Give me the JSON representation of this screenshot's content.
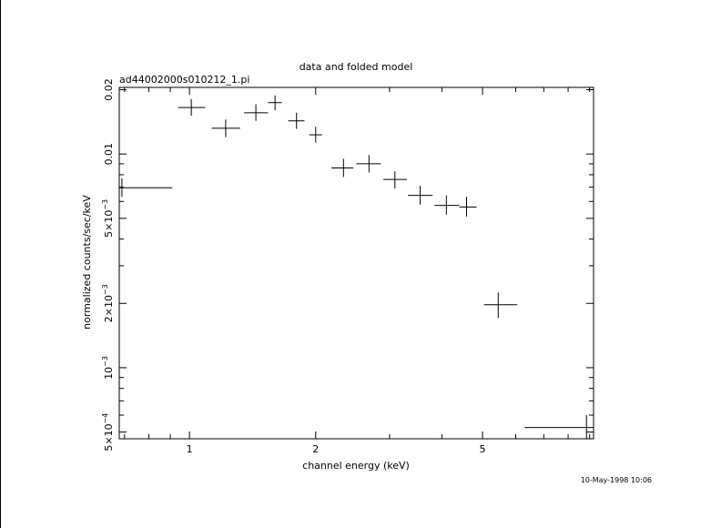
{
  "chart_data": {
    "type": "scatter",
    "title": "data and folded model",
    "subtitle": "ad44002000s010212_1.pi",
    "xlabel": "channel energy (keV)",
    "ylabel": "normalized counts/sec/keV",
    "timestamp": "10-May-1998 10:06",
    "x_scale": "log",
    "y_scale": "log",
    "xlim": [
      0.68,
      9.2
    ],
    "ylim": [
      0.000465,
      0.0205
    ],
    "grid": false,
    "x_ticks": [
      {
        "value": 1,
        "label": "1"
      },
      {
        "value": 2,
        "label": "2"
      },
      {
        "value": 5,
        "label": "5"
      }
    ],
    "y_ticks": [
      {
        "value": 0.0005,
        "base": "5×10",
        "exp": "−4"
      },
      {
        "value": 0.001,
        "base": "10",
        "exp": "−3"
      },
      {
        "value": 0.002,
        "base": "2×10",
        "exp": "−3"
      },
      {
        "value": 0.005,
        "base": "5×10",
        "exp": "−3"
      },
      {
        "value": 0.01,
        "label": "0.01"
      },
      {
        "value": 0.02,
        "label": "0.02"
      }
    ],
    "points": [
      {
        "x": 0.69,
        "x_lo": 0.68,
        "x_hi": 0.91,
        "y": 0.00695,
        "y_lo": 0.0063,
        "y_hi": 0.0077
      },
      {
        "x": 1.01,
        "x_lo": 0.94,
        "x_hi": 1.09,
        "y": 0.0165,
        "y_lo": 0.0151,
        "y_hi": 0.0181
      },
      {
        "x": 1.22,
        "x_lo": 1.13,
        "x_hi": 1.32,
        "y": 0.0132,
        "y_lo": 0.012,
        "y_hi": 0.0145
      },
      {
        "x": 1.44,
        "x_lo": 1.35,
        "x_hi": 1.54,
        "y": 0.0156,
        "y_lo": 0.0143,
        "y_hi": 0.0171
      },
      {
        "x": 1.6,
        "x_lo": 1.54,
        "x_hi": 1.66,
        "y": 0.0174,
        "y_lo": 0.016,
        "y_hi": 0.0188
      },
      {
        "x": 1.8,
        "x_lo": 1.72,
        "x_hi": 1.88,
        "y": 0.0143,
        "y_lo": 0.0131,
        "y_hi": 0.0156
      },
      {
        "x": 2.0,
        "x_lo": 1.93,
        "x_hi": 2.07,
        "y": 0.0123,
        "y_lo": 0.0113,
        "y_hi": 0.0134
      },
      {
        "x": 2.33,
        "x_lo": 2.18,
        "x_hi": 2.46,
        "y": 0.0086,
        "y_lo": 0.0078,
        "y_hi": 0.0095
      },
      {
        "x": 2.68,
        "x_lo": 2.5,
        "x_hi": 2.86,
        "y": 0.009,
        "y_lo": 0.0082,
        "y_hi": 0.0099
      },
      {
        "x": 3.09,
        "x_lo": 2.9,
        "x_hi": 3.3,
        "y": 0.0076,
        "y_lo": 0.0069,
        "y_hi": 0.0083
      },
      {
        "x": 3.55,
        "x_lo": 3.32,
        "x_hi": 3.8,
        "y": 0.0064,
        "y_lo": 0.0058,
        "y_hi": 0.0071
      },
      {
        "x": 4.1,
        "x_lo": 3.84,
        "x_hi": 4.4,
        "y": 0.00575,
        "y_lo": 0.0052,
        "y_hi": 0.0064
      },
      {
        "x": 4.58,
        "x_lo": 4.4,
        "x_hi": 4.84,
        "y": 0.00565,
        "y_lo": 0.0051,
        "y_hi": 0.0063
      },
      {
        "x": 5.45,
        "x_lo": 5.04,
        "x_hi": 6.05,
        "y": 0.00197,
        "y_lo": 0.00171,
        "y_hi": 0.00225
      },
      {
        "x": 8.85,
        "x_lo": 6.3,
        "x_hi": 9.2,
        "y": 0.000525,
        "y_lo": 0.000465,
        "y_hi": 0.0006
      }
    ]
  }
}
